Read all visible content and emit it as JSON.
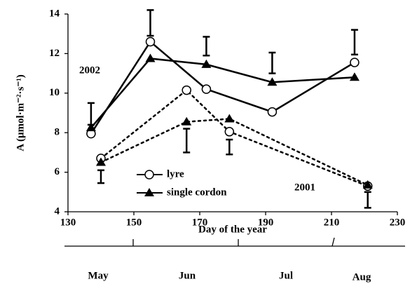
{
  "chart_data": {
    "type": "line",
    "y_label": "A (μmol·m⁻²·s⁻¹)",
    "x_label": "Day of the year",
    "months": [
      "May",
      "Jun",
      "Jul",
      "Aug"
    ],
    "annotations": [
      "2002",
      "2001"
    ],
    "xlim": [
      130,
      230
    ],
    "xticks": [
      130,
      150,
      170,
      190,
      210,
      230
    ],
    "ylim": [
      4,
      14
    ],
    "yticks": [
      4,
      6,
      8,
      10,
      12,
      14
    ],
    "series": [
      {
        "name": "lyre",
        "marker": "circle",
        "color": "#000000",
        "lines": [
          {
            "dash": "solid",
            "x": [
              137,
              155,
              172,
              192,
              217
            ],
            "values": [
              7.95,
              12.6,
              10.2,
              9.05,
              11.55
            ]
          },
          {
            "dash": "dotted",
            "x": [
              140,
              166,
              179,
              221
            ],
            "values": [
              6.7,
              10.15,
              8.05,
              5.3
            ]
          }
        ]
      },
      {
        "name": "single cordon",
        "marker": "triangle",
        "color": "#000000",
        "lines": [
          {
            "dash": "solid",
            "x": [
              137,
              155,
              172,
              192,
              217
            ],
            "values": [
              8.25,
              11.75,
              11.45,
              10.55,
              10.8
            ]
          },
          {
            "dash": "dotted",
            "x": [
              140,
              166,
              179,
              221
            ],
            "values": [
              6.5,
              8.55,
              8.7,
              5.35
            ]
          }
        ]
      }
    ],
    "error_bars": [
      {
        "x": 137,
        "low": 8.4,
        "high": 9.5
      },
      {
        "x": 155,
        "low": 12.9,
        "high": 14.2
      },
      {
        "x": 172,
        "low": 11.9,
        "high": 12.85
      },
      {
        "x": 192,
        "low": 11.0,
        "high": 12.05
      },
      {
        "x": 217,
        "low": 11.95,
        "high": 13.2
      },
      {
        "x": 140,
        "low": 5.45,
        "high": 6.1
      },
      {
        "x": 166,
        "low": 7.0,
        "high": 8.2
      },
      {
        "x": 179,
        "low": 6.9,
        "high": 7.65
      },
      {
        "x": 221,
        "low": 4.2,
        "high": 5.0
      }
    ]
  }
}
